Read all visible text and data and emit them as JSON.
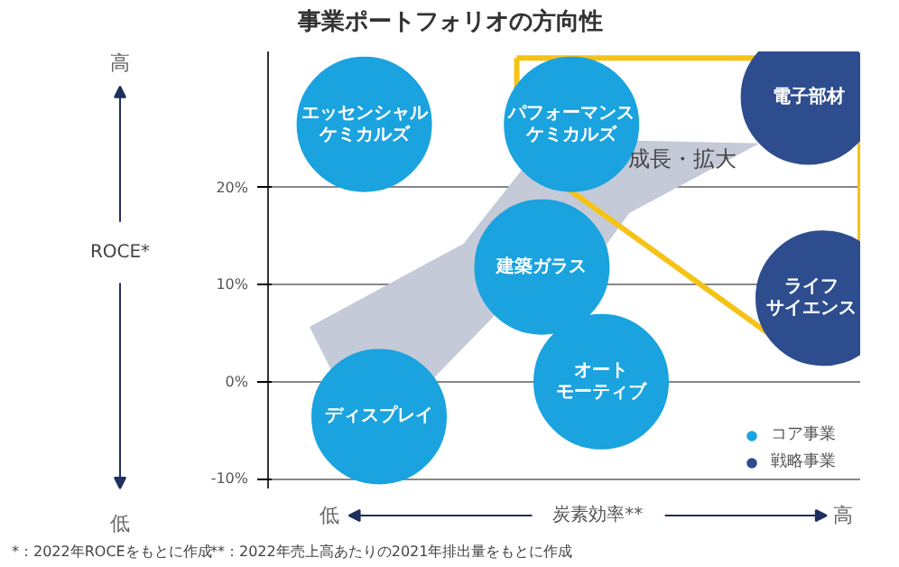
{
  "chart_data": {
    "type": "scatter",
    "title": "事業ポートフォリオの方向性",
    "xlabel": "炭素効率**",
    "ylabel": "ROCE*",
    "categories": [
      null,
      null,
      null,
      null,
      null,
      null,
      null,
      null,
      null,
      null,
      null,
      null,
      null,
      null,
      null,
      null,
      null,
      null,
      null,
      null,
      null,
      null,
      null,
      null,
      null,
      null,
      null,
      null,
      null,
      null,
      null,
      null,
      null,
      null,
      null,
      null,
      null,
      null,
      null,
      null
    ],
    "ylim": [
      -11,
      34
    ],
    "yticks": [
      {
        "value": -10,
        "label": "-10%"
      },
      {
        "value": 0,
        "label": "0%"
      },
      {
        "value": 10,
        "label": "10%"
      },
      {
        "value": 20,
        "label": "20%"
      }
    ],
    "grid": "y",
    "legend": "bottom right",
    "marker": "circle",
    "series": [
      {
        "name": "コア事業",
        "color": "#1aa3df",
        "values": [
          null,
          null,
          null,
          null,
          null,
          null,
          26.5,
          -3.6,
          null,
          null,
          null,
          null,
          null,
          null,
          null,
          null,
          null,
          null,
          11.8,
          null,
          26.5,
          null,
          0,
          null,
          null,
          null,
          null,
          null,
          null,
          null,
          null,
          null,
          null,
          null,
          null,
          null,
          null,
          null,
          null,
          null
        ],
        "value_labels": [
          null,
          null,
          null,
          null,
          null,
          null,
          "エッセンシャルケミカルズ",
          "ディスプレイ",
          null,
          null,
          null,
          null,
          null,
          null,
          null,
          null,
          null,
          null,
          "建築ガラス",
          null,
          "パフォーマンスケミカルズ",
          null,
          "オートモーティブ",
          null,
          null,
          null,
          null,
          null,
          null,
          null,
          null,
          null,
          null,
          null,
          null,
          null,
          null,
          null,
          null,
          null
        ]
      },
      {
        "name": "戦略事業",
        "color": "#2e4d8f",
        "values": [
          null,
          null,
          null,
          null,
          null,
          null,
          null,
          null,
          null,
          null,
          null,
          null,
          null,
          null,
          null,
          null,
          null,
          null,
          null,
          null,
          null,
          null,
          null,
          null,
          null,
          null,
          null,
          null,
          null,
          null,
          null,
          null,
          null,
          null,
          null,
          null,
          29.3,
          8.6,
          null,
          null
        ],
        "value_labels": [
          null,
          null,
          null,
          null,
          null,
          null,
          null,
          null,
          null,
          null,
          null,
          null,
          null,
          null,
          null,
          null,
          null,
          null,
          null,
          null,
          null,
          null,
          null,
          null,
          null,
          null,
          null,
          null,
          null,
          null,
          null,
          null,
          null,
          null,
          null,
          null,
          "電子部材",
          "ライフサイエンス",
          null,
          null
        ]
      }
    ],
    "annotations": [
      "成長・拡大",
      "高",
      "低",
      "低",
      "高",
      "*：2022年ROCEをもとに作成",
      "**：2022年売上高あたりの2021年排出量をもとに作成"
    ]
  }
}
